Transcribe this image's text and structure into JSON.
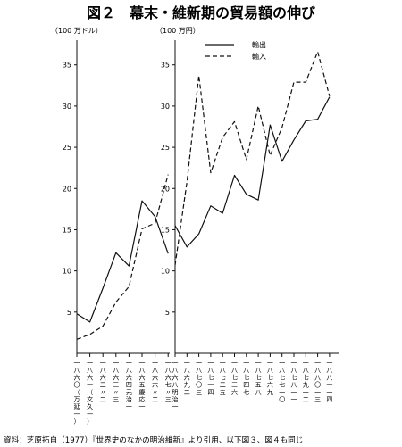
{
  "title": "図２　幕末・維新期の貿易額の伸び",
  "source": "資料：芝原拓自（1977）『世界史のなかの明治維新』より引用、以下図３、図４も同じ",
  "chart_data": [
    {
      "type": "line",
      "ylabel": "（100 万ドル）",
      "ylim": [
        0,
        38
      ],
      "yticks": [
        5,
        10,
        15,
        20,
        25,
        30,
        35
      ],
      "categories": [
        "一八六〇（万延一）",
        "一八六一（文久一）",
        "一八六二（〃二）",
        "一八六三（〃三）",
        "一八六四（元治一）",
        "一八六五（慶応一）",
        "一八六六（〃二）",
        "一八六七（〃三）"
      ],
      "x_tick_labels": [
        [
          "一",
          "八",
          "六",
          "〇",
          "（",
          "万",
          "延",
          "一",
          "）"
        ],
        [
          "一",
          "八",
          "六",
          "一",
          "（",
          "文",
          "久",
          "一",
          "）"
        ],
        [
          "一",
          "八",
          "六",
          "二",
          "〃",
          "二"
        ],
        [
          "一",
          "八",
          "六",
          "三",
          "〃",
          "三"
        ],
        [
          "一",
          "八",
          "六",
          "四",
          "元",
          "治",
          "一"
        ],
        [
          "一",
          "八",
          "六",
          "五",
          "慶",
          "応",
          "一"
        ],
        [
          "一",
          "八",
          "六",
          "六",
          "〃",
          "二"
        ],
        [
          "一",
          "八",
          "六",
          "七",
          "〃",
          "三"
        ]
      ],
      "series": [
        {
          "name": "輸出",
          "style": "solid",
          "values": [
            4.8,
            3.8,
            7.9,
            12.2,
            10.6,
            18.5,
            16.6,
            12.1
          ]
        },
        {
          "name": "輸入",
          "style": "dashed",
          "values": [
            1.7,
            2.3,
            3.3,
            6.2,
            8.1,
            15.1,
            15.8,
            21.7
          ]
        }
      ]
    },
    {
      "type": "line",
      "ylabel": "（100 万円）",
      "ylim": [
        0,
        38
      ],
      "yticks": [
        5,
        10,
        15,
        20,
        25,
        30,
        35
      ],
      "categories": [
        "一八六八（明治一）",
        "一八六九（二）",
        "一八七〇（三）",
        "一八七一（四）",
        "一八七二（五）",
        "一八七三（六）",
        "一八七四（七）",
        "一八七五（八）",
        "一八七六（九）",
        "一八七七（一〇）",
        "一八七八（一一）",
        "一八七九（一二）",
        "一八八〇（一三）",
        "一八八一（一四）"
      ],
      "x_tick_labels": [
        [
          "一",
          "八",
          "六",
          "八",
          "明",
          "治",
          "一"
        ],
        [
          "一",
          "八",
          "六",
          "九",
          "二"
        ],
        [
          "一",
          "八",
          "七",
          "〇",
          "三"
        ],
        [
          "一",
          "八",
          "七",
          "一",
          "四"
        ],
        [
          "一",
          "八",
          "七",
          "二",
          "五"
        ],
        [
          "一",
          "八",
          "七",
          "三",
          "六"
        ],
        [
          "一",
          "八",
          "七",
          "四",
          "七"
        ],
        [
          "一",
          "八",
          "七",
          "五",
          "八"
        ],
        [
          "一",
          "八",
          "七",
          "六",
          "九"
        ],
        [
          "一",
          "八",
          "七",
          "七",
          "一",
          "〇"
        ],
        [
          "一",
          "八",
          "七",
          "八",
          "一",
          "一"
        ],
        [
          "一",
          "八",
          "七",
          "九",
          "一",
          "二"
        ],
        [
          "一",
          "八",
          "八",
          "〇",
          "一",
          "三"
        ],
        [
          "一",
          "八",
          "八",
          "一",
          "一",
          "四"
        ]
      ],
      "legend_position": "top",
      "series": [
        {
          "name": "輸出",
          "style": "solid",
          "values": [
            15.5,
            12.9,
            14.5,
            17.9,
            17.0,
            21.6,
            19.3,
            18.6,
            27.7,
            23.3,
            25.9,
            28.2,
            28.4,
            31.1
          ]
        },
        {
          "name": "輸入",
          "style": "dashed",
          "values": [
            10.7,
            20.8,
            33.7,
            21.9,
            26.2,
            28.1,
            23.5,
            30.0,
            24.0,
            27.4,
            32.9,
            32.9,
            36.6,
            31.2
          ]
        }
      ]
    }
  ]
}
